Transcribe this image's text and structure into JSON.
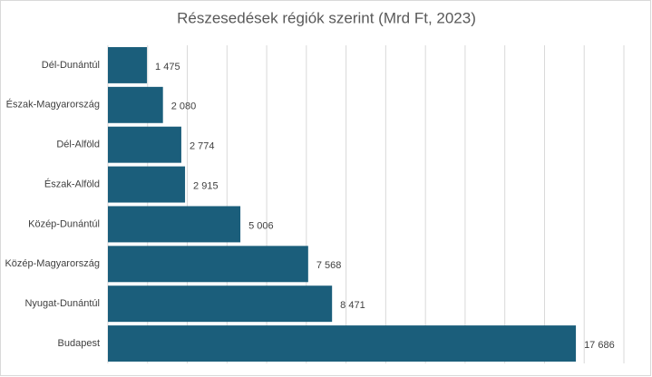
{
  "chart_data": {
    "type": "hbar",
    "title": "Részesedések régiók szerint (Mrd Ft, 2023)",
    "categories": [
      "Dél-Dunántúl",
      "Észak-Magyarország",
      "Dél-Alföld",
      "Észak-Alföld",
      "Közép-Dunántúl",
      "Közép-Magyarország",
      "Nyugat-Dunántúl",
      "Budapest"
    ],
    "values": [
      1475,
      2080,
      2774,
      2915,
      5006,
      7568,
      8471,
      17686
    ],
    "value_labels": [
      "1 475",
      "2 080",
      "2 774",
      "2 915",
      "5 006",
      "7 568",
      "8 471",
      "17 686"
    ],
    "color": "#1b5e7b",
    "xlim": [
      0,
      19500
    ],
    "xticks": [
      0,
      1500,
      3000,
      4500,
      6000,
      7500,
      9000,
      10500,
      12000,
      13500,
      15000,
      16500,
      18000,
      19500
    ],
    "grid": true
  }
}
